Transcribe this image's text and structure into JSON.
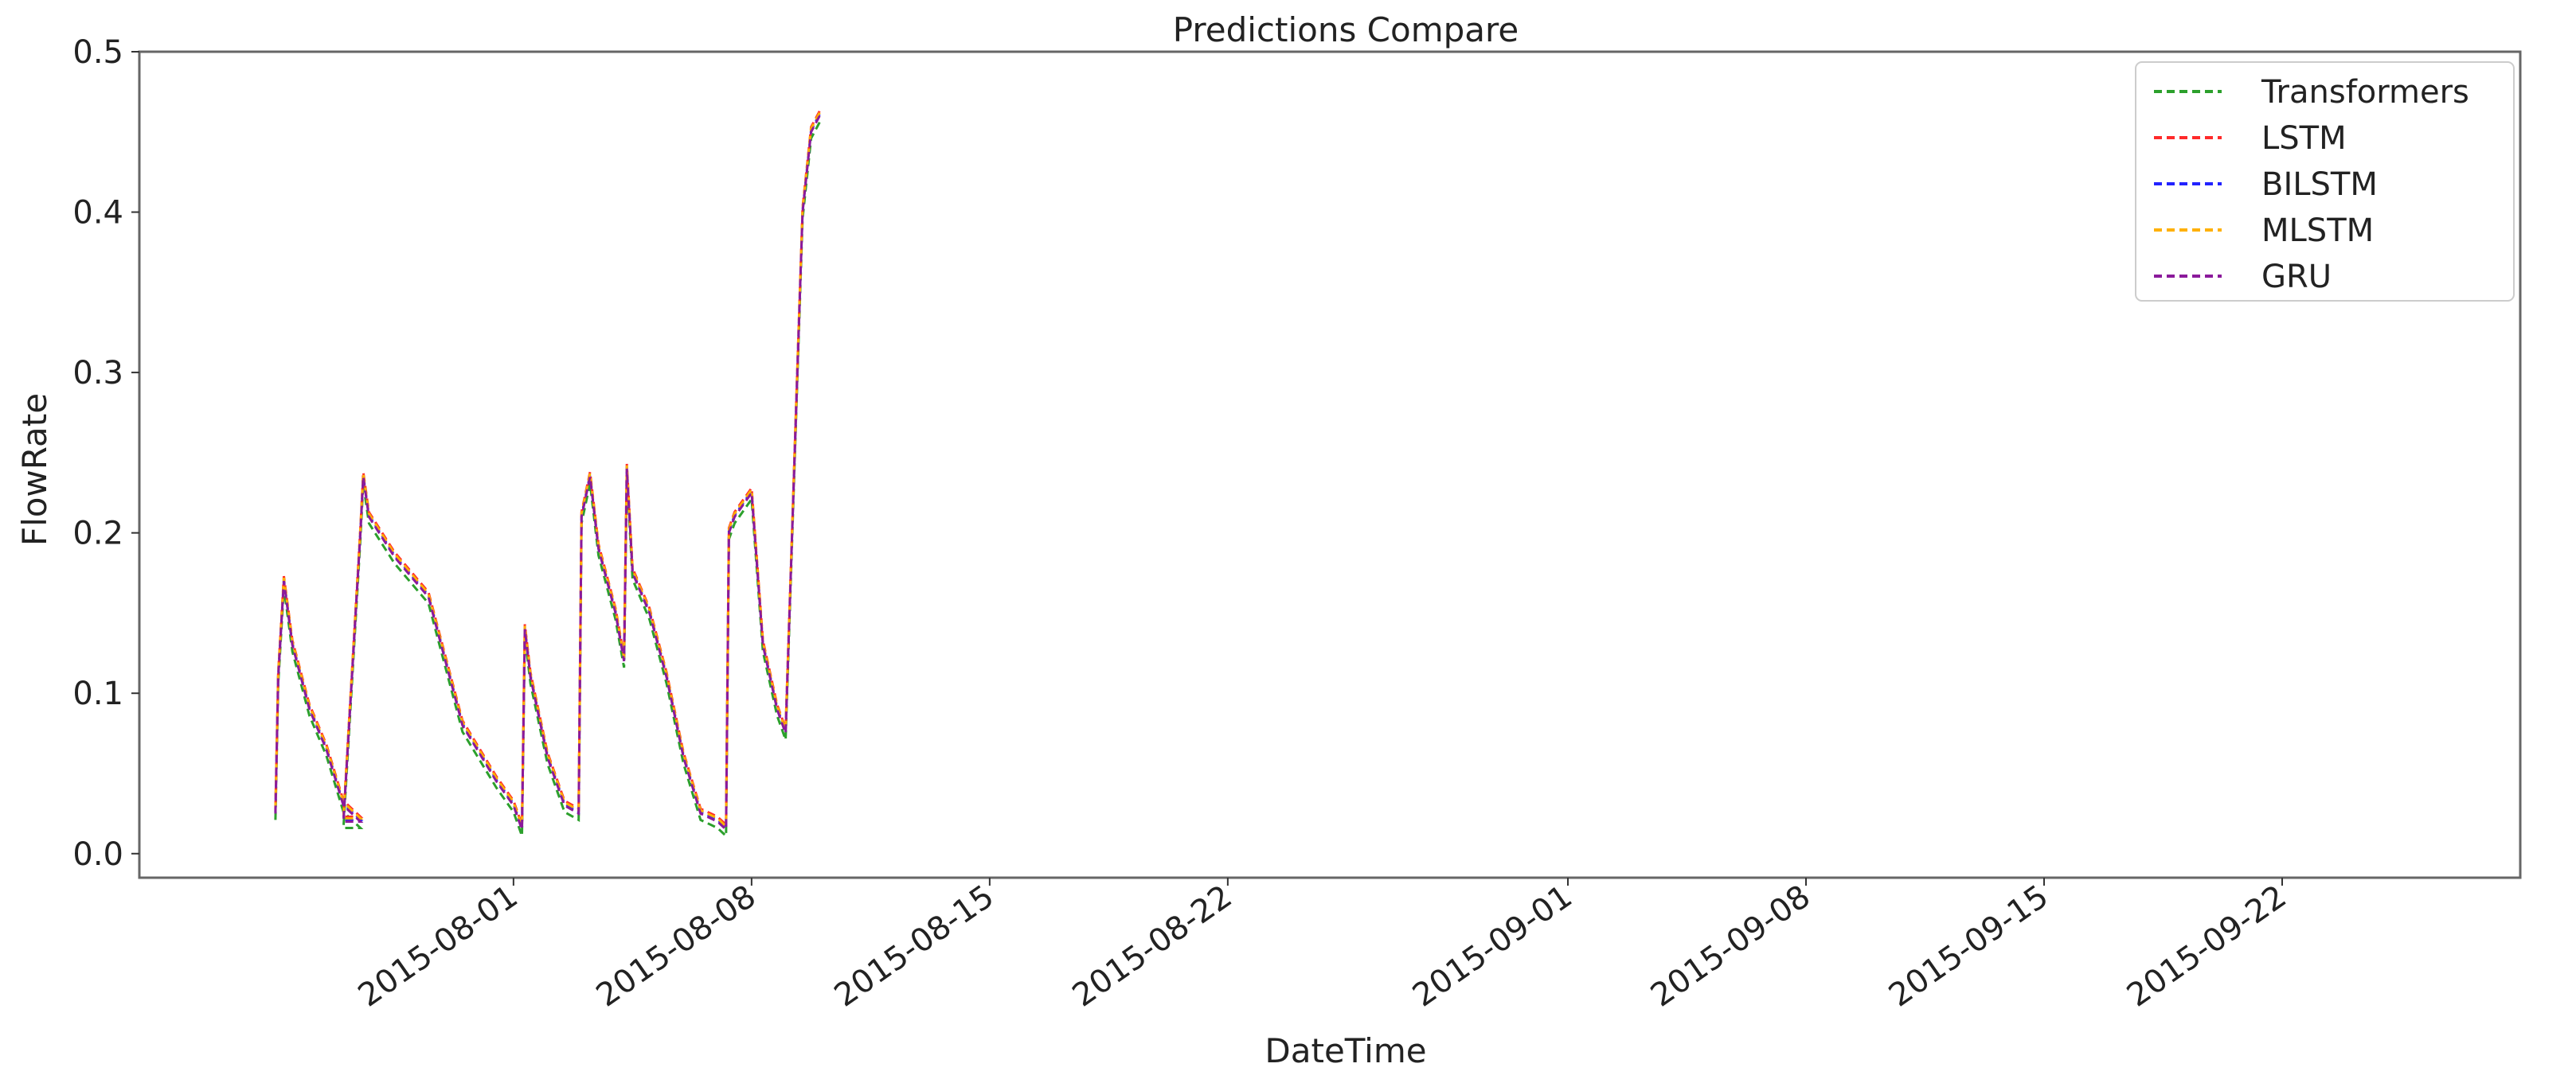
{
  "chart_data": {
    "type": "line",
    "title": "Predictions Compare",
    "xlabel": "DateTime",
    "ylabel": "FlowRate",
    "xlim": [
      "2015-07-21",
      "2015-09-29"
    ],
    "ylim": [
      -0.015,
      0.5
    ],
    "x_ticks": [
      "2015-08-01",
      "2015-08-08",
      "2015-08-15",
      "2015-08-22",
      "2015-09-01",
      "2015-09-08",
      "2015-09-15",
      "2015-09-22"
    ],
    "y_ticks": [
      "0.0",
      "0.1",
      "0.2",
      "0.3",
      "0.4",
      "0.5"
    ],
    "grid": false,
    "legend_position": "top-right",
    "line_style": "dashed",
    "series": [
      {
        "name": "Transformers",
        "color": "#2ca02c"
      },
      {
        "name": "LSTM",
        "color": "#ff2a2a"
      },
      {
        "name": "BILSTM",
        "color": "#2222ff"
      },
      {
        "name": "MLSTM",
        "color": "#ffb000"
      },
      {
        "name": "GRU",
        "color": "#8b1a9b"
      }
    ],
    "shared_profile": {
      "x": [
        "2015-07-25 00:00",
        "2015-07-25 02:00",
        "2015-07-25 06:00",
        "2015-07-25 12:00",
        "2015-07-26 00:00",
        "2015-07-26 12:00",
        "2015-07-27 00:00",
        "2015-07-27 12:00",
        "2015-07-27 00:00",
        "2015-07-27 12:00",
        "2015-07-27 14:00",
        "2015-07-27 18:00",
        "2015-07-28 12:00",
        "2015-07-29 12:00",
        "2015-07-30 12:00",
        "2015-07-31 12:00",
        "2015-08-01 00:00",
        "2015-08-01 06:00",
        "2015-08-01 08:00",
        "2015-08-01 12:00",
        "2015-08-02 00:00",
        "2015-08-02 12:00",
        "2015-08-02 22:00",
        "2015-08-03 00:00",
        "2015-08-03 06:00",
        "2015-08-03 12:00",
        "2015-08-04 00:00",
        "2015-08-04 06:00",
        "2015-08-04 08:00",
        "2015-08-04 12:00",
        "2015-08-05 00:00",
        "2015-08-05 12:00",
        "2015-08-06 00:00",
        "2015-08-06 12:00",
        "2015-08-07 00:00",
        "2015-08-07 06:00",
        "2015-08-07 08:00",
        "2015-08-07 12:00",
        "2015-08-08 00:00",
        "2015-08-08 08:00",
        "2015-08-08 18:00",
        "2015-08-09 00:00",
        "2015-08-09 12:00",
        "2015-08-09 18:00",
        "2015-08-10 00:00"
      ],
      "y": [
        0.025,
        0.11,
        0.17,
        0.13,
        0.09,
        0.065,
        0.03,
        0.02,
        0.02,
        0.2,
        0.235,
        0.21,
        0.185,
        0.16,
        0.08,
        0.045,
        0.03,
        0.015,
        0.14,
        0.11,
        0.06,
        0.03,
        0.025,
        0.21,
        0.235,
        0.19,
        0.15,
        0.12,
        0.24,
        0.175,
        0.15,
        0.11,
        0.06,
        0.025,
        0.02,
        0.015,
        0.2,
        0.21,
        0.225,
        0.13,
        0.09,
        0.075,
        0.4,
        0.45,
        0.46
      ]
    }
  }
}
